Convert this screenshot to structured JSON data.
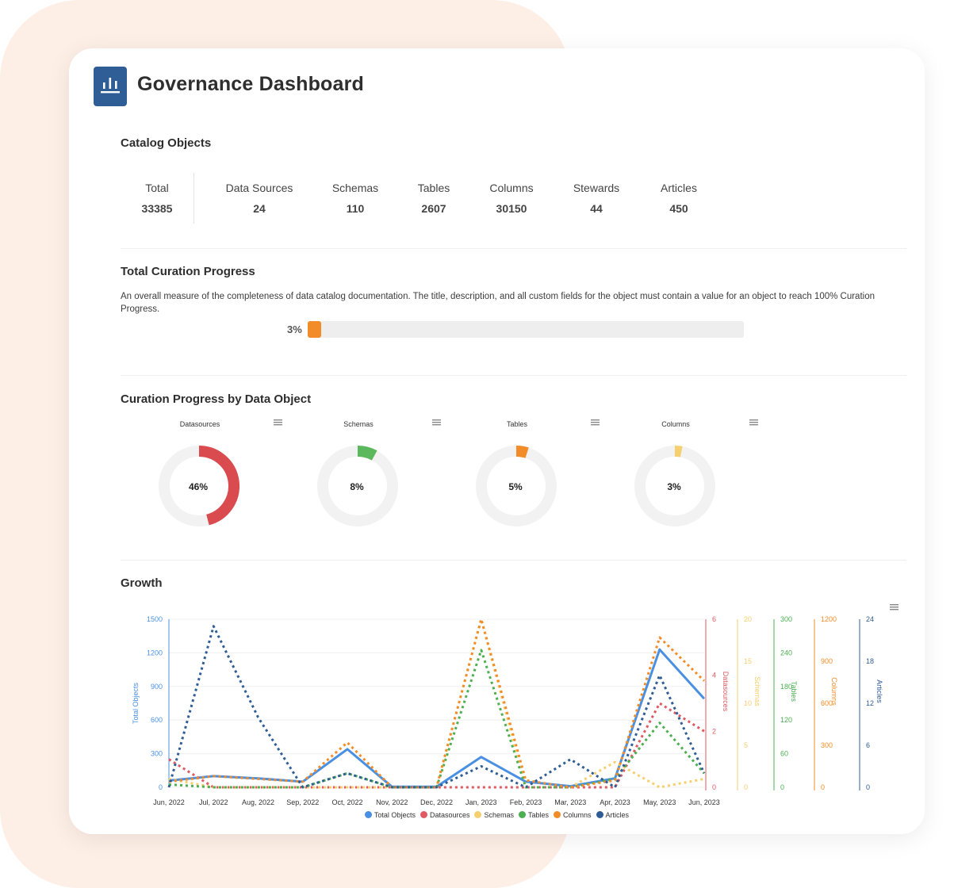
{
  "app": {
    "title": "Governance Dashboard",
    "logo_icon": "bar-chart-icon",
    "accent_color": "#2f5d95"
  },
  "catalog": {
    "title": "Catalog Objects",
    "stats": [
      {
        "label": "Total",
        "value": "33385"
      },
      {
        "label": "Data Sources",
        "value": "24"
      },
      {
        "label": "Schemas",
        "value": "110"
      },
      {
        "label": "Tables",
        "value": "2607"
      },
      {
        "label": "Columns",
        "value": "30150"
      },
      {
        "label": "Stewards",
        "value": "44"
      },
      {
        "label": "Articles",
        "value": "450"
      }
    ]
  },
  "curation": {
    "title": "Total Curation Progress",
    "description": "An overall measure of the completeness of data catalog documentation. The title, description, and all custom fields for the object must contain a value for an object to reach 100% Curation Progress.",
    "progress_label": "3%",
    "progress_value": 3,
    "progress_color": "#f28c28"
  },
  "by_object": {
    "title": "Curation Progress by Data Object",
    "menu_icon": "hamburger-menu-icon",
    "donuts": [
      {
        "label": "Datasources",
        "value_label": "46%",
        "value": 46,
        "color": "#d94b4f"
      },
      {
        "label": "Schemas",
        "value_label": "8%",
        "value": 8,
        "color": "#5cb85c"
      },
      {
        "label": "Tables",
        "value_label": "5%",
        "value": 5,
        "color": "#f28c28"
      },
      {
        "label": "Columns",
        "value_label": "3%",
        "value": 3,
        "color": "#f6cf6e"
      }
    ]
  },
  "growth": {
    "title": "Growth",
    "menu_icon": "hamburger-menu-icon"
  },
  "chart_data": {
    "type": "line",
    "title": "Growth",
    "categories": [
      "Jun, 2022",
      "Jul, 2022",
      "Aug, 2022",
      "Sep, 2022",
      "Oct, 2022",
      "Nov, 2022",
      "Dec, 2022",
      "Jan, 2023",
      "Feb, 2023",
      "Mar, 2023",
      "Apr, 2023",
      "May, 2023",
      "Jun, 2023"
    ],
    "grid": true,
    "legend_position": "bottom-center",
    "axes": [
      {
        "id": "total",
        "label": "Total Objects",
        "side": "left",
        "ticks": [
          "0",
          "300",
          "600",
          "900",
          "1200",
          "1500"
        ],
        "range": [
          0,
          1500
        ],
        "color": "#4a90e2"
      },
      {
        "id": "ds",
        "label": "Datasources",
        "side": "right",
        "ticks": [
          "0",
          "2",
          "4",
          "6"
        ],
        "range": [
          0,
          6
        ],
        "color": "#e05a63"
      },
      {
        "id": "sch",
        "label": "Schemas",
        "side": "right",
        "ticks": [
          "0",
          "5",
          "10",
          "15",
          "20"
        ],
        "range": [
          0,
          20
        ],
        "color": "#f6cf6e"
      },
      {
        "id": "tab",
        "label": "Tables",
        "side": "right",
        "ticks": [
          "0",
          "60",
          "120",
          "180",
          "240",
          "300"
        ],
        "range": [
          0,
          300
        ],
        "color": "#4caf50"
      },
      {
        "id": "col",
        "label": "Columns",
        "side": "right",
        "ticks": [
          "0",
          "300",
          "600",
          "900",
          "1200"
        ],
        "range": [
          0,
          1200
        ],
        "color": "#f28c28"
      },
      {
        "id": "art",
        "label": "Articles",
        "side": "right",
        "ticks": [
          "0",
          "6",
          "12",
          "18",
          "24"
        ],
        "range": [
          0,
          24
        ],
        "color": "#2f5d95"
      }
    ],
    "series": [
      {
        "name": "Total Objects",
        "axis": "total",
        "color": "#4a90e2",
        "dashed": false,
        "values": [
          60,
          100,
          80,
          50,
          340,
          5,
          5,
          270,
          50,
          10,
          80,
          1230,
          790
        ]
      },
      {
        "name": "Datasources",
        "axis": "ds",
        "color": "#e05a63",
        "dashed": true,
        "values": [
          1,
          0,
          0,
          0,
          0,
          0,
          0,
          0,
          0,
          0,
          0,
          3,
          2
        ]
      },
      {
        "name": "Schemas",
        "axis": "sch",
        "color": "#f6cf6e",
        "dashed": true,
        "values": [
          1,
          0,
          0,
          0,
          0,
          0,
          0,
          20,
          0,
          0,
          3,
          0,
          1
        ]
      },
      {
        "name": "Tables",
        "axis": "tab",
        "color": "#4caf50",
        "dashed": true,
        "values": [
          5,
          0,
          0,
          0,
          25,
          0,
          0,
          245,
          0,
          0,
          15,
          115,
          25
        ]
      },
      {
        "name": "Columns",
        "axis": "col",
        "color": "#f28c28",
        "dashed": true,
        "values": [
          40,
          80,
          60,
          40,
          320,
          0,
          0,
          1200,
          50,
          0,
          50,
          1070,
          760
        ]
      },
      {
        "name": "Articles",
        "axis": "art",
        "color": "#2f5d95",
        "dashed": true,
        "values": [
          0,
          23,
          10,
          0,
          2,
          0,
          0,
          3,
          0,
          4,
          0,
          16,
          2
        ]
      }
    ]
  }
}
